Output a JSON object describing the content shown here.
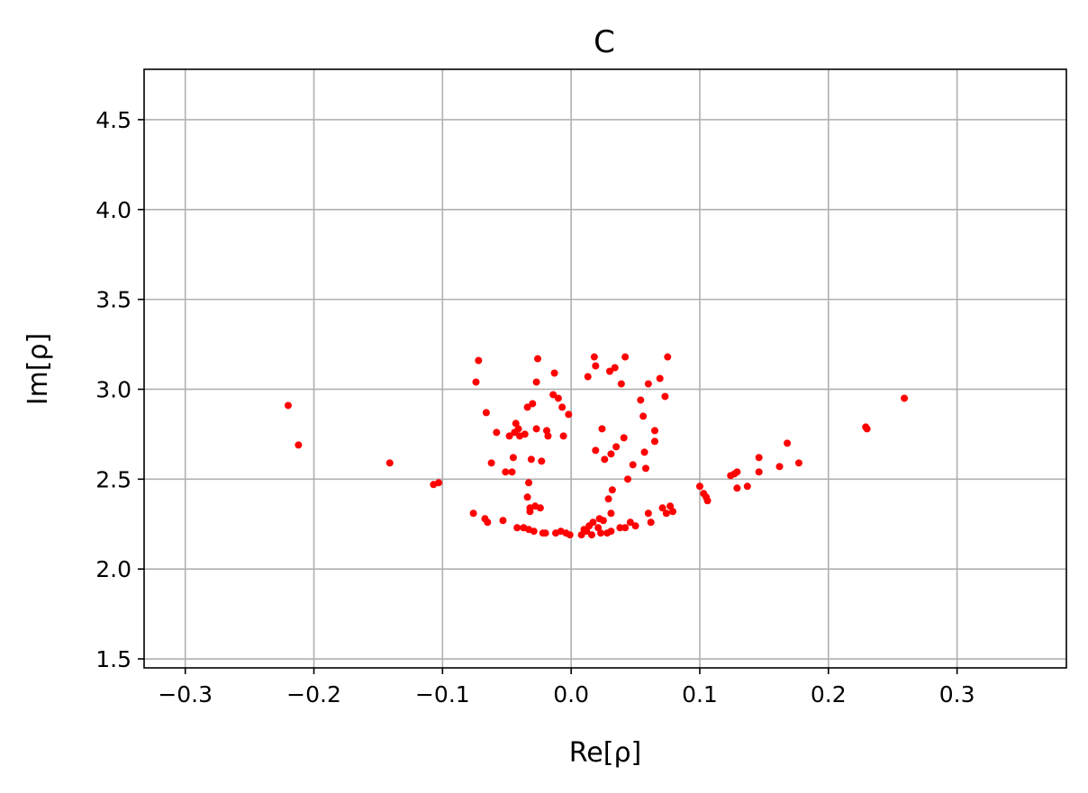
{
  "chart_data": {
    "type": "scatter",
    "title": "C",
    "xlabel": "Re[ρ]",
    "ylabel": "Im[ρ]",
    "xlim": [
      -0.332,
      0.385
    ],
    "ylim": [
      1.45,
      4.78
    ],
    "xticks": [
      -0.3,
      -0.2,
      -0.1,
      0.0,
      0.1,
      0.2,
      0.3
    ],
    "xtick_labels": [
      "−0.3",
      "−0.2",
      "−0.1",
      "0.0",
      "0.1",
      "0.2",
      "0.3"
    ],
    "yticks": [
      1.5,
      2.0,
      2.5,
      3.0,
      3.5,
      4.0,
      4.5
    ],
    "ytick_labels": [
      "1.5",
      "2.0",
      "2.5",
      "3.0",
      "3.5",
      "4.0",
      "4.5"
    ],
    "grid": true,
    "color": "#ff0000",
    "points": [
      [
        -0.22,
        2.91
      ],
      [
        -0.212,
        2.69
      ],
      [
        -0.141,
        2.59
      ],
      [
        -0.107,
        2.47
      ],
      [
        -0.103,
        2.48
      ],
      [
        -0.076,
        2.31
      ],
      [
        -0.074,
        3.04
      ],
      [
        -0.072,
        3.16
      ],
      [
        -0.067,
        2.28
      ],
      [
        -0.066,
        2.87
      ],
      [
        -0.065,
        2.26
      ],
      [
        -0.062,
        2.59
      ],
      [
        -0.058,
        2.76
      ],
      [
        -0.053,
        2.27
      ],
      [
        -0.051,
        2.54
      ],
      [
        -0.048,
        2.74
      ],
      [
        -0.046,
        2.54
      ],
      [
        -0.045,
        2.62
      ],
      [
        -0.044,
        2.76
      ],
      [
        -0.043,
        2.81
      ],
      [
        -0.042,
        2.23
      ],
      [
        -0.041,
        2.78
      ],
      [
        -0.04,
        2.74
      ],
      [
        -0.037,
        2.23
      ],
      [
        -0.036,
        2.75
      ],
      [
        -0.034,
        2.9
      ],
      [
        -0.034,
        2.4
      ],
      [
        -0.033,
        2.22
      ],
      [
        -0.033,
        2.48
      ],
      [
        -0.032,
        2.34
      ],
      [
        -0.032,
        2.32
      ],
      [
        -0.031,
        2.61
      ],
      [
        -0.03,
        2.92
      ],
      [
        -0.029,
        2.21
      ],
      [
        -0.028,
        2.35
      ],
      [
        -0.027,
        2.78
      ],
      [
        -0.027,
        3.04
      ],
      [
        -0.026,
        3.17
      ],
      [
        -0.024,
        2.34
      ],
      [
        -0.023,
        2.6
      ],
      [
        -0.022,
        2.2
      ],
      [
        -0.02,
        2.2
      ],
      [
        -0.019,
        2.77
      ],
      [
        -0.018,
        2.74
      ],
      [
        -0.014,
        2.97
      ],
      [
        -0.013,
        3.09
      ],
      [
        -0.012,
        2.2
      ],
      [
        -0.01,
        2.95
      ],
      [
        -0.008,
        2.21
      ],
      [
        -0.007,
        2.9
      ],
      [
        -0.006,
        2.74
      ],
      [
        -0.004,
        2.2
      ],
      [
        -0.002,
        2.86
      ],
      [
        -0.001,
        2.19
      ],
      [
        0.008,
        2.19
      ],
      [
        0.01,
        2.22
      ],
      [
        0.012,
        2.21
      ],
      [
        0.013,
        3.07
      ],
      [
        0.014,
        2.24
      ],
      [
        0.016,
        2.19
      ],
      [
        0.017,
        2.26
      ],
      [
        0.018,
        3.18
      ],
      [
        0.019,
        2.66
      ],
      [
        0.019,
        3.13
      ],
      [
        0.021,
        2.23
      ],
      [
        0.022,
        2.28
      ],
      [
        0.023,
        2.2
      ],
      [
        0.024,
        2.78
      ],
      [
        0.025,
        2.27
      ],
      [
        0.026,
        2.61
      ],
      [
        0.028,
        2.2
      ],
      [
        0.029,
        2.39
      ],
      [
        0.03,
        3.1
      ],
      [
        0.031,
        2.21
      ],
      [
        0.031,
        2.64
      ],
      [
        0.031,
        2.31
      ],
      [
        0.032,
        2.44
      ],
      [
        0.034,
        3.12
      ],
      [
        0.035,
        2.68
      ],
      [
        0.038,
        2.23
      ],
      [
        0.039,
        3.03
      ],
      [
        0.041,
        2.73
      ],
      [
        0.042,
        3.18
      ],
      [
        0.042,
        2.23
      ],
      [
        0.044,
        2.5
      ],
      [
        0.046,
        2.26
      ],
      [
        0.048,
        2.58
      ],
      [
        0.05,
        2.24
      ],
      [
        0.054,
        2.94
      ],
      [
        0.056,
        2.85
      ],
      [
        0.057,
        2.65
      ],
      [
        0.058,
        2.56
      ],
      [
        0.06,
        3.03
      ],
      [
        0.06,
        2.31
      ],
      [
        0.062,
        2.26
      ],
      [
        0.065,
        2.71
      ],
      [
        0.065,
        2.77
      ],
      [
        0.069,
        3.06
      ],
      [
        0.071,
        2.34
      ],
      [
        0.073,
        2.96
      ],
      [
        0.074,
        2.31
      ],
      [
        0.075,
        3.18
      ],
      [
        0.077,
        2.35
      ],
      [
        0.079,
        2.32
      ],
      [
        0.1,
        2.46
      ],
      [
        0.103,
        2.42
      ],
      [
        0.105,
        2.4
      ],
      [
        0.106,
        2.38
      ],
      [
        0.124,
        2.52
      ],
      [
        0.127,
        2.53
      ],
      [
        0.129,
        2.54
      ],
      [
        0.129,
        2.45
      ],
      [
        0.137,
        2.46
      ],
      [
        0.146,
        2.54
      ],
      [
        0.146,
        2.62
      ],
      [
        0.162,
        2.57
      ],
      [
        0.168,
        2.7
      ],
      [
        0.177,
        2.59
      ],
      [
        0.229,
        2.79
      ],
      [
        0.23,
        2.78
      ],
      [
        0.259,
        2.95
      ]
    ]
  }
}
